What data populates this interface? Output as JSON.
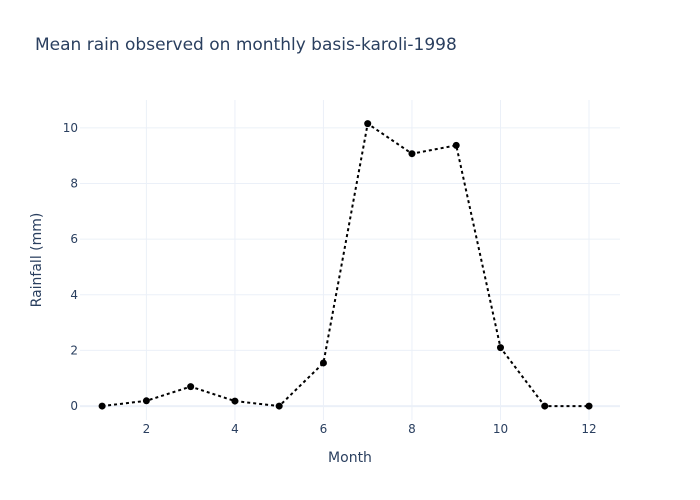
{
  "chart_data": {
    "type": "line",
    "title": "Mean rain observed on monthly basis-karoli-1998",
    "xlabel": "Month",
    "ylabel": "Rainfall (mm)",
    "xlim": [
      0.5,
      12.7
    ],
    "ylim": [
      -0.5,
      11
    ],
    "xticks": [
      2,
      4,
      6,
      8,
      10,
      12
    ],
    "yticks": [
      0,
      2,
      4,
      6,
      8,
      10
    ],
    "grid": true,
    "line_style": "dotted",
    "marker": "circle",
    "color": "#000000",
    "series": [
      {
        "x": [
          1,
          2,
          3,
          4,
          5,
          6,
          7,
          8,
          9,
          10,
          11,
          12
        ],
        "y": [
          0.0,
          0.19,
          0.7,
          0.18,
          0.0,
          1.55,
          10.15,
          9.07,
          9.37,
          2.1,
          0.0,
          0.0
        ]
      }
    ]
  }
}
